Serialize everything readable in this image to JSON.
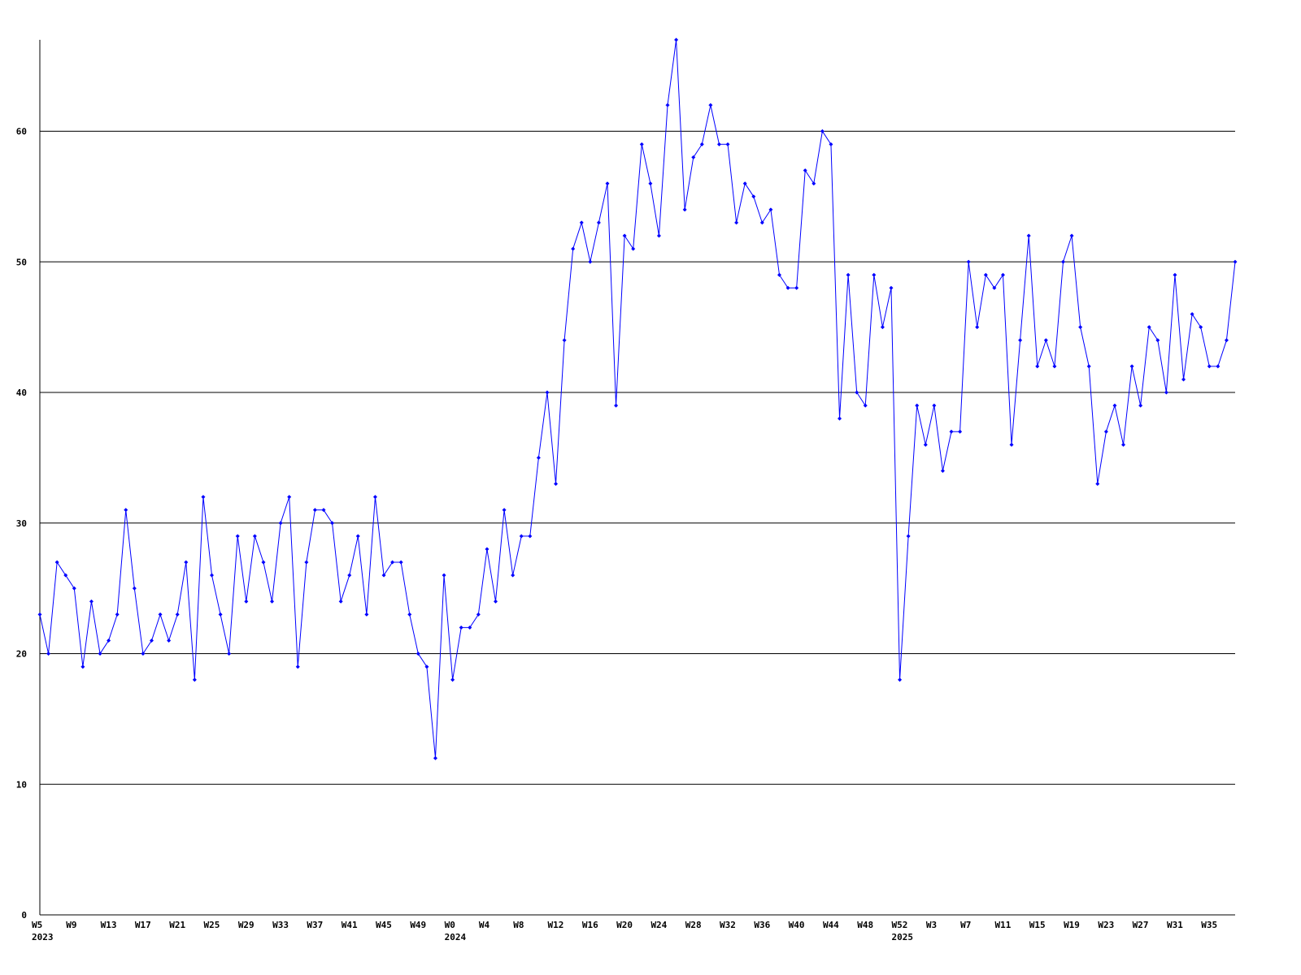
{
  "chart_data": {
    "type": "line",
    "categories": [
      "W5",
      null,
      null,
      null,
      "W9",
      null,
      null,
      null,
      "W13",
      null,
      null,
      null,
      "W17",
      null,
      null,
      null,
      "W21",
      null,
      null,
      null,
      "W25",
      null,
      null,
      null,
      "W29",
      null,
      null,
      null,
      "W33",
      null,
      null,
      null,
      "W37",
      null,
      null,
      null,
      "W41",
      null,
      null,
      null,
      "W45",
      null,
      null,
      null,
      "W49",
      null,
      null,
      null,
      "W0",
      null,
      null,
      null,
      "W4",
      null,
      null,
      null,
      "W8",
      null,
      null,
      null,
      "W12",
      null,
      null,
      null,
      "W16",
      null,
      null,
      null,
      "W20",
      null,
      null,
      null,
      "W24",
      null,
      null,
      null,
      "W28",
      null,
      null,
      null,
      "W32",
      null,
      null,
      null,
      "W36",
      null,
      null,
      null,
      "W40",
      null,
      null,
      null,
      "W44",
      null,
      null,
      null,
      "W48",
      null,
      null,
      null,
      "W52",
      null,
      null,
      null,
      "W3",
      null,
      null,
      null,
      "W7",
      null,
      null,
      null,
      "W11",
      null,
      null,
      null,
      "W15",
      null,
      null,
      null,
      "W19",
      null,
      null,
      null,
      "W23",
      null,
      null,
      null,
      "W27",
      null,
      null,
      null,
      "W31",
      null,
      null,
      null,
      "W35",
      null,
      null,
      null
    ],
    "years": [
      "2023",
      null,
      null,
      null,
      null,
      null,
      null,
      null,
      null,
      null,
      null,
      null,
      null,
      null,
      null,
      null,
      null,
      null,
      null,
      null,
      null,
      null,
      null,
      null,
      null,
      null,
      null,
      null,
      null,
      null,
      null,
      null,
      null,
      null,
      null,
      null,
      null,
      null,
      null,
      null,
      null,
      null,
      null,
      null,
      null,
      null,
      null,
      null,
      "2024",
      null,
      null,
      null,
      null,
      null,
      null,
      null,
      null,
      null,
      null,
      null,
      null,
      null,
      null,
      null,
      null,
      null,
      null,
      null,
      null,
      null,
      null,
      null,
      null,
      null,
      null,
      null,
      null,
      null,
      null,
      null,
      null,
      null,
      null,
      null,
      null,
      null,
      null,
      null,
      null,
      null,
      null,
      null,
      null,
      null,
      null,
      null,
      null,
      null,
      null,
      null,
      "2025",
      null,
      null,
      null,
      null,
      null,
      null,
      null,
      null,
      null,
      null,
      null,
      null,
      null,
      null,
      null,
      null,
      null,
      null,
      null,
      null,
      null,
      null,
      null,
      null,
      null,
      null,
      null,
      null,
      null,
      null,
      null,
      null,
      null,
      null,
      null,
      null,
      null,
      null,
      null
    ],
    "series": [
      {
        "color": "#0000ff",
        "values": [
          23,
          20,
          27,
          26,
          25,
          19,
          24,
          20,
          21,
          23,
          31,
          25,
          20,
          21,
          23,
          21,
          23,
          27,
          18,
          32,
          26,
          23,
          20,
          29,
          24,
          29,
          27,
          24,
          30,
          32,
          19,
          27,
          31,
          31,
          30,
          24,
          26,
          29,
          23,
          32,
          26,
          27,
          27,
          23,
          20,
          19,
          12,
          26,
          18,
          22,
          22,
          23,
          28,
          24,
          31,
          26,
          29,
          29,
          35,
          40,
          33,
          44,
          51,
          53,
          50,
          53,
          56,
          39,
          52,
          51,
          59,
          56,
          52,
          62,
          67,
          54,
          58,
          59,
          62,
          59,
          59,
          53,
          56,
          55,
          53,
          54,
          49,
          48,
          48,
          57,
          56,
          60,
          59,
          38,
          49,
          40,
          39,
          49,
          45,
          48,
          18,
          29,
          39,
          36,
          39,
          34,
          37,
          37,
          50,
          45,
          49,
          48,
          49,
          36,
          44,
          52,
          42,
          44,
          42,
          50,
          52,
          45,
          42,
          33,
          37,
          39,
          36,
          42,
          39,
          45,
          44,
          40,
          49,
          41,
          46,
          45,
          42,
          42,
          44,
          50
        ]
      }
    ],
    "ylim": [
      0,
      67
    ],
    "yticks": [
      0,
      10,
      20,
      30,
      40,
      50,
      60
    ],
    "grid": true
  }
}
